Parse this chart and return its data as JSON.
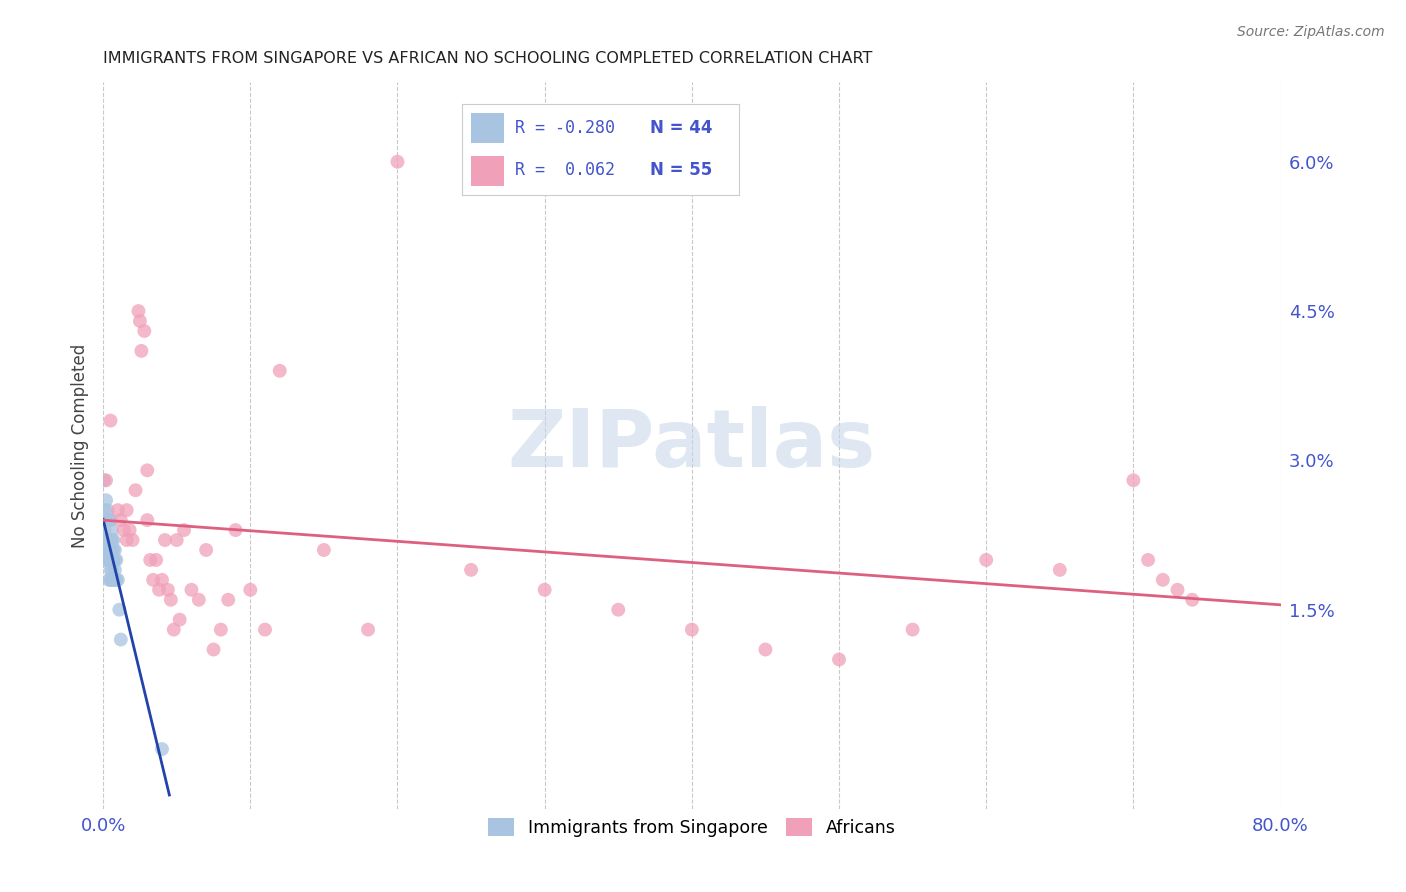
{
  "title": "IMMIGRANTS FROM SINGAPORE VS AFRICAN NO SCHOOLING COMPLETED CORRELATION CHART",
  "source": "Source: ZipAtlas.com",
  "ylabel": "No Schooling Completed",
  "yticks": [
    "6.0%",
    "4.5%",
    "3.0%",
    "1.5%"
  ],
  "ytick_vals": [
    0.06,
    0.045,
    0.03,
    0.015
  ],
  "xlim": [
    0.0,
    0.8
  ],
  "ylim": [
    -0.005,
    0.068
  ],
  "background_color": "#ffffff",
  "grid_color": "#bbbbbb",
  "title_color": "#222222",
  "source_color": "#777777",
  "axis_label_color": "#4455cc",
  "watermark_text": "ZIPatlas",
  "watermark_color": "#c5d5e8",
  "singapore_color": "#a8c4e0",
  "african_color": "#f0a0b8",
  "singapore_line_color": "#2244aa",
  "african_line_color": "#dd6080",
  "legend_box_color": "#ffffff",
  "legend_border_color": "#cccccc",
  "singapore_points_x": [
    0.0005,
    0.001,
    0.001,
    0.0015,
    0.002,
    0.002,
    0.002,
    0.002,
    0.003,
    0.003,
    0.003,
    0.003,
    0.003,
    0.004,
    0.004,
    0.004,
    0.004,
    0.004,
    0.005,
    0.005,
    0.005,
    0.005,
    0.005,
    0.005,
    0.006,
    0.006,
    0.006,
    0.006,
    0.006,
    0.006,
    0.007,
    0.007,
    0.007,
    0.007,
    0.008,
    0.008,
    0.008,
    0.008,
    0.009,
    0.009,
    0.01,
    0.011,
    0.012,
    0.04
  ],
  "singapore_points_y": [
    0.028,
    0.025,
    0.023,
    0.022,
    0.026,
    0.024,
    0.022,
    0.02,
    0.025,
    0.024,
    0.022,
    0.021,
    0.02,
    0.024,
    0.022,
    0.021,
    0.02,
    0.018,
    0.024,
    0.022,
    0.021,
    0.02,
    0.019,
    0.018,
    0.023,
    0.022,
    0.021,
    0.02,
    0.019,
    0.018,
    0.022,
    0.021,
    0.02,
    0.018,
    0.021,
    0.02,
    0.019,
    0.018,
    0.02,
    0.018,
    0.018,
    0.015,
    0.012,
    0.001
  ],
  "african_points_x": [
    0.002,
    0.005,
    0.01,
    0.012,
    0.014,
    0.016,
    0.016,
    0.018,
    0.02,
    0.022,
    0.024,
    0.025,
    0.026,
    0.028,
    0.03,
    0.03,
    0.032,
    0.034,
    0.036,
    0.038,
    0.04,
    0.042,
    0.044,
    0.046,
    0.048,
    0.05,
    0.052,
    0.055,
    0.06,
    0.065,
    0.07,
    0.075,
    0.08,
    0.085,
    0.09,
    0.1,
    0.11,
    0.12,
    0.15,
    0.18,
    0.2,
    0.25,
    0.3,
    0.35,
    0.4,
    0.45,
    0.5,
    0.55,
    0.6,
    0.65,
    0.7,
    0.71,
    0.72,
    0.73,
    0.74
  ],
  "african_points_y": [
    0.028,
    0.034,
    0.025,
    0.024,
    0.023,
    0.025,
    0.022,
    0.023,
    0.022,
    0.027,
    0.045,
    0.044,
    0.041,
    0.043,
    0.029,
    0.024,
    0.02,
    0.018,
    0.02,
    0.017,
    0.018,
    0.022,
    0.017,
    0.016,
    0.013,
    0.022,
    0.014,
    0.023,
    0.017,
    0.016,
    0.021,
    0.011,
    0.013,
    0.016,
    0.023,
    0.017,
    0.013,
    0.039,
    0.021,
    0.013,
    0.06,
    0.019,
    0.017,
    0.015,
    0.013,
    0.011,
    0.01,
    0.013,
    0.02,
    0.019,
    0.028,
    0.02,
    0.018,
    0.017,
    0.016
  ]
}
